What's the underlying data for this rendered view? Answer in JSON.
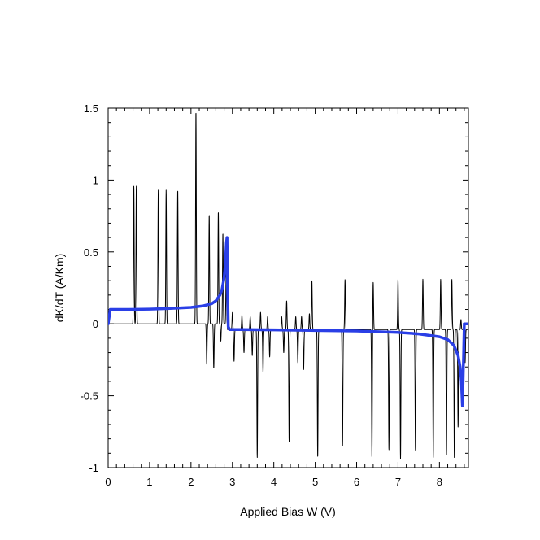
{
  "chart_data": {
    "type": "line",
    "title": "",
    "xlabel": "Applied Bias W (V)",
    "ylabel": "dK/dT (A/Km)",
    "xlim": [
      0,
      8.7
    ],
    "ylim": [
      -1,
      1.5
    ],
    "x_ticks": [
      "0",
      "1",
      "2",
      "3",
      "4",
      "5",
      "6",
      "7",
      "8"
    ],
    "y_ticks": [
      "1.5",
      "1",
      "0.5",
      "0",
      "-0.5",
      "-1"
    ],
    "grid": false,
    "legend": "none",
    "series": [
      {
        "color": "#000000",
        "baseline_low": 0.0,
        "baseline_high": -0.04,
        "switch_x": 2.88,
        "peaks": [
          {
            "x": 0.62,
            "y": 0.96
          },
          {
            "x": 0.68,
            "y": 0.96
          },
          {
            "x": 1.21,
            "y": 0.93
          },
          {
            "x": 1.4,
            "y": 0.93
          },
          {
            "x": 1.68,
            "y": 0.93
          },
          {
            "x": 2.12,
            "y": 1.48
          },
          {
            "x": 2.38,
            "y": -0.28
          },
          {
            "x": 2.44,
            "y": 0.76
          },
          {
            "x": 2.55,
            "y": -0.31
          },
          {
            "x": 2.66,
            "y": 0.78
          },
          {
            "x": 2.72,
            "y": -0.12
          },
          {
            "x": 2.77,
            "y": 0.63
          },
          {
            "x": 2.85,
            "y": 0.35
          },
          {
            "x": 3.0,
            "y": 0.08
          },
          {
            "x": 3.04,
            "y": -0.26
          },
          {
            "x": 3.23,
            "y": 0.06
          },
          {
            "x": 3.28,
            "y": -0.2
          },
          {
            "x": 3.43,
            "y": 0.05
          },
          {
            "x": 3.48,
            "y": -0.22
          },
          {
            "x": 3.6,
            "y": -0.93
          },
          {
            "x": 3.68,
            "y": 0.08
          },
          {
            "x": 3.74,
            "y": -0.34
          },
          {
            "x": 3.85,
            "y": 0.05
          },
          {
            "x": 3.9,
            "y": -0.23
          },
          {
            "x": 4.19,
            "y": 0.05
          },
          {
            "x": 4.24,
            "y": -0.2
          },
          {
            "x": 4.31,
            "y": 0.16
          },
          {
            "x": 4.37,
            "y": -0.82
          },
          {
            "x": 4.53,
            "y": 0.05
          },
          {
            "x": 4.58,
            "y": -0.27
          },
          {
            "x": 4.67,
            "y": 0.05
          },
          {
            "x": 4.72,
            "y": -0.32
          },
          {
            "x": 4.86,
            "y": 0.07
          },
          {
            "x": 4.92,
            "y": 0.3
          },
          {
            "x": 5.06,
            "y": -0.93
          },
          {
            "x": 5.66,
            "y": -0.85
          },
          {
            "x": 5.72,
            "y": 0.31
          },
          {
            "x": 6.37,
            "y": -0.93
          },
          {
            "x": 6.4,
            "y": 0.29
          },
          {
            "x": 6.78,
            "y": -0.88
          },
          {
            "x": 7.0,
            "y": 0.31
          },
          {
            "x": 7.06,
            "y": -0.94
          },
          {
            "x": 7.42,
            "y": -0.88
          },
          {
            "x": 7.6,
            "y": 0.31
          },
          {
            "x": 7.85,
            "y": -0.93
          },
          {
            "x": 8.03,
            "y": 0.31
          },
          {
            "x": 8.17,
            "y": -0.91
          },
          {
            "x": 8.3,
            "y": 0.31
          },
          {
            "x": 8.36,
            "y": -0.93
          },
          {
            "x": 8.45,
            "y": -0.72
          },
          {
            "x": 8.52,
            "y": 0.03
          },
          {
            "x": 8.62,
            "y": -0.27
          }
        ]
      },
      {
        "color": "#2a3fe6",
        "x": [
          0,
          0.05,
          0.5,
          1.0,
          1.5,
          2.0,
          2.3,
          2.5,
          2.6,
          2.7,
          2.75,
          2.8,
          2.83,
          2.855,
          2.87,
          2.88,
          2.9,
          2.93,
          3.2,
          4.0,
          5.0,
          6.0,
          7.0,
          7.5,
          8.0,
          8.2,
          8.35,
          8.45,
          8.5,
          8.53,
          8.555,
          8.57,
          8.6,
          8.65,
          8.7
        ],
        "y": [
          0,
          0.1,
          0.1,
          0.102,
          0.107,
          0.114,
          0.125,
          0.14,
          0.16,
          0.2,
          0.24,
          0.32,
          0.42,
          0.56,
          0.6,
          0.3,
          -0.02,
          -0.04,
          -0.04,
          -0.042,
          -0.046,
          -0.05,
          -0.06,
          -0.07,
          -0.09,
          -0.11,
          -0.15,
          -0.22,
          -0.3,
          -0.4,
          -0.57,
          -0.4,
          0.0,
          0.0,
          0.0
        ]
      }
    ]
  }
}
